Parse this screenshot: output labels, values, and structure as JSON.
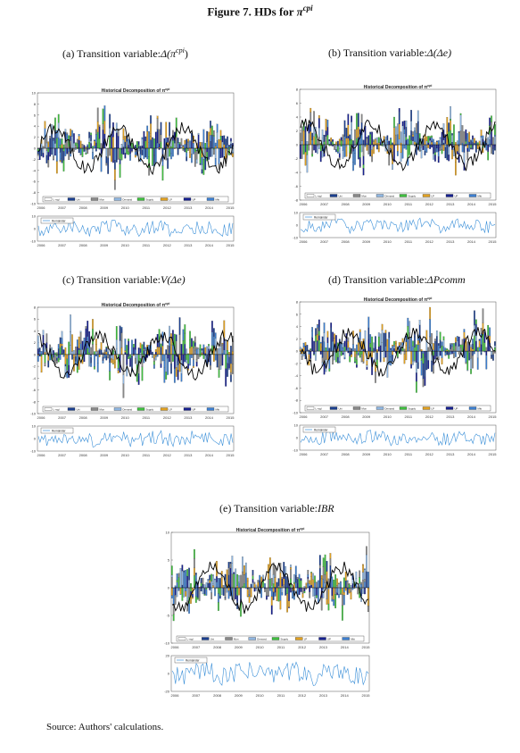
{
  "figure": {
    "title_prefix": "Figure 7. HDs for ",
    "title_var": "π",
    "title_sup": "cpi"
  },
  "source": "Source: Authors' calculations.",
  "legend_labels": [
    "L-mgl",
    "Uni",
    "Mon",
    "Demand",
    "Supply",
    "LP",
    "UP",
    "Mkt"
  ],
  "legend_colors": [
    "#ffffff",
    "#1b3f8f",
    "#888888",
    "#8fb6e0",
    "#3fbf3f",
    "#e0a020",
    "#16208f",
    "#3d7fd0"
  ],
  "years": [
    "2006",
    "2007",
    "2008",
    "2009",
    "2010",
    "2011",
    "2012",
    "2013",
    "2014",
    "2015"
  ],
  "remainder_label": "Remainder",
  "panels": [
    {
      "caption_prefix": "(a) Transition variable:",
      "caption_var": "Δ(π",
      "caption_sup": "cpi",
      "caption_suffix": ")",
      "chart_title": "Historical Decomposition of π",
      "chart_title_sup": "cpi",
      "y_ticks": [
        "10",
        "8",
        "6",
        "4",
        "2",
        "0",
        "-2",
        "-4",
        "-6",
        "-8",
        "-10"
      ],
      "rem_ticks": [
        "10",
        "0",
        "-10"
      ]
    },
    {
      "caption_prefix": "(b) Transition variable:",
      "caption_var": "Δ(Δe)",
      "caption_sup": "",
      "caption_suffix": "",
      "chart_title": "Historical Decomposition of π",
      "chart_title_sup": "cpi",
      "y_ticks": [
        "8",
        "6",
        "4",
        "2",
        "0",
        "-2",
        "-4",
        "-6",
        "-8"
      ],
      "rem_ticks": [
        "10",
        "0",
        "-10"
      ]
    },
    {
      "caption_prefix": "(c) Transition variable:",
      "caption_var": "V(Δe)",
      "caption_sup": "",
      "caption_suffix": "",
      "chart_title": "Historical Decomposition of π",
      "chart_title_sup": "cpi",
      "y_ticks": [
        "8",
        "6",
        "4",
        "2",
        "0",
        "-2",
        "-4",
        "-6",
        "-8",
        "-10"
      ],
      "rem_ticks": [
        "10",
        "0",
        "-10"
      ]
    },
    {
      "caption_prefix": "(d) Transition variable:",
      "caption_var": "ΔPcomm",
      "caption_sup": "",
      "caption_suffix": "",
      "chart_title": "Historical Decomposition of π",
      "chart_title_sup": "cpi",
      "y_ticks": [
        "8",
        "6",
        "4",
        "2",
        "0",
        "-2",
        "-4",
        "-6",
        "-8",
        "-10"
      ],
      "rem_ticks": [
        "10",
        "0",
        "-10"
      ]
    },
    {
      "caption_prefix": "(e) Transition variable:",
      "caption_var": "IBR",
      "caption_sup": "",
      "caption_suffix": "",
      "chart_title": "Historical Decomposition of π",
      "chart_title_sup": "cpi",
      "y_ticks": [
        "10",
        "5",
        "0",
        "-5",
        "-10"
      ],
      "rem_ticks": [
        "20",
        "0",
        "-20"
      ]
    }
  ]
}
